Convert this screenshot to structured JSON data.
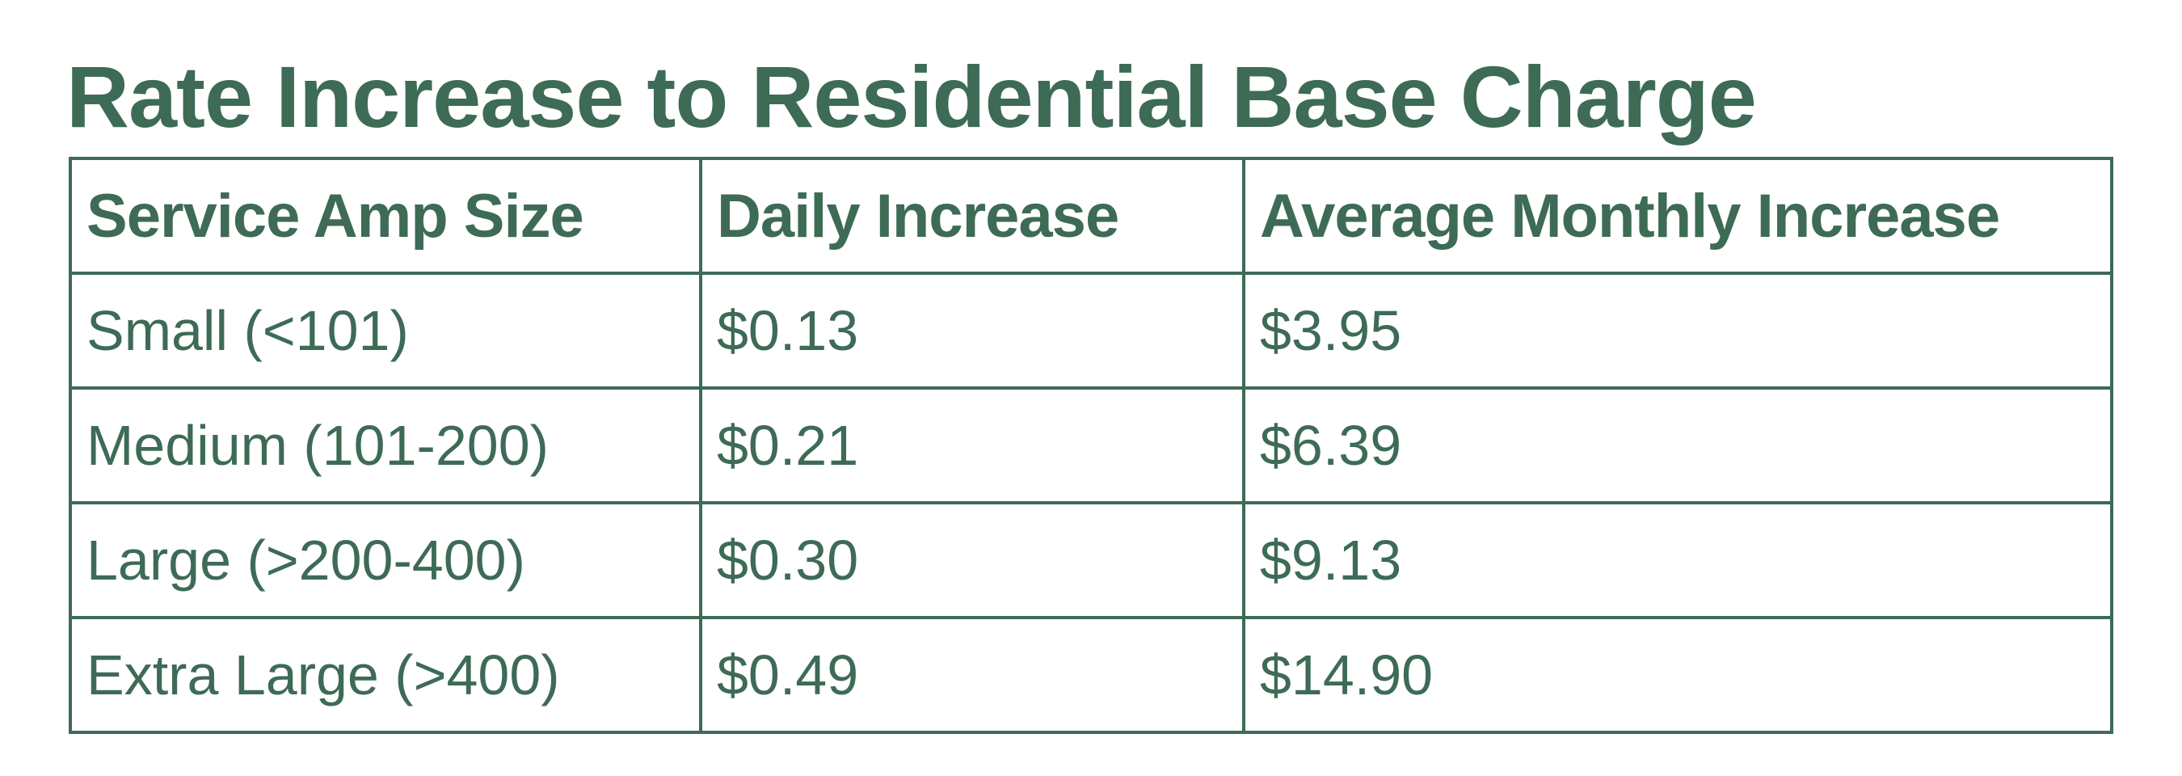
{
  "title": "Rate Increase to Residential Base Charge",
  "table": {
    "headers": [
      "Service Amp Size",
      "Daily Increase",
      "Average Monthly Increase"
    ],
    "rows": [
      [
        "Small (<101)",
        "$0.13",
        "$3.95"
      ],
      [
        "Medium (101-200)",
        "$0.21",
        "$6.39"
      ],
      [
        "Large (>200-400)",
        "$0.30",
        "$9.13"
      ],
      [
        "Extra Large (>400)",
        "$0.49",
        "$14.90"
      ]
    ]
  },
  "colors": {
    "text": "#3d6b56",
    "border": "#3d6b56",
    "background": "#ffffff"
  }
}
